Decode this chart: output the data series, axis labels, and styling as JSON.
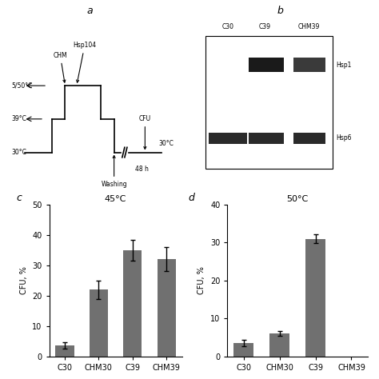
{
  "panel_c": {
    "categories": [
      "C30",
      "CHM30",
      "C39",
      "CHM39"
    ],
    "values": [
      3.5,
      22.0,
      35.0,
      32.0
    ],
    "errors": [
      1.0,
      3.0,
      3.5,
      4.0
    ],
    "ylabel": "CFU, %",
    "ylim": [
      0,
      50
    ],
    "yticks": [
      0,
      10,
      20,
      30,
      40,
      50
    ],
    "title": "45°C",
    "bar_color": "#707070"
  },
  "panel_d": {
    "categories": [
      "C30",
      "CHM30",
      "C39",
      "CHM39"
    ],
    "values": [
      3.5,
      6.0,
      31.0,
      0.0
    ],
    "errors": [
      0.8,
      0.6,
      1.2,
      0.0
    ],
    "ylabel": "CFU, %",
    "ylim": [
      0,
      40
    ],
    "yticks": [
      0,
      10,
      20,
      30,
      40
    ],
    "title": "50°C",
    "bar_color": "#707070"
  },
  "panel_b": {
    "lanes": [
      "C30",
      "C39",
      "CHM39"
    ],
    "bands": [
      "Hsp104",
      "Hsp6"
    ],
    "band_labels_right": [
      "Hsp1",
      "Hsp6"
    ]
  },
  "background_color": "#ffffff"
}
